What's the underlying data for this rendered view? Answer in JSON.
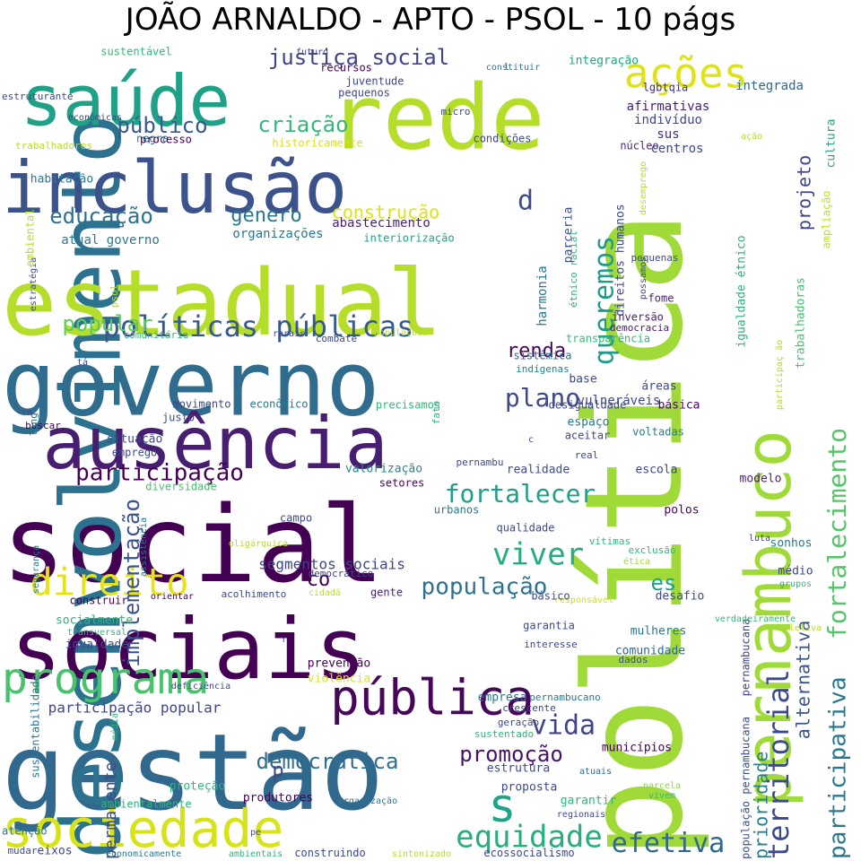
{
  "chart_data": {
    "type": "wordcloud",
    "title": "JOÃO ARNALDO - APTO - PSOL - 10 págs",
    "words": [
      {
        "text": "política",
        "rank": 1,
        "color": "#a0da39"
      },
      {
        "text": "social",
        "rank": 2,
        "color": "#440154"
      },
      {
        "text": "gestão",
        "rank": 3,
        "color": "#31688e"
      },
      {
        "text": "desenvolvimento",
        "rank": 4,
        "color": "#2c728e"
      },
      {
        "text": "estadual",
        "rank": 5,
        "color": "#b5de2b"
      },
      {
        "text": "governo",
        "rank": 6,
        "color": "#2f6c8e"
      },
      {
        "text": "sociais",
        "rank": 7,
        "color": "#440154"
      },
      {
        "text": "rede",
        "rank": 8,
        "color": "#b5de2b"
      },
      {
        "text": "pernambuco",
        "rank": 9,
        "color": "#a0da39"
      },
      {
        "text": "inclusão",
        "rank": 10,
        "color": "#3b528b"
      },
      {
        "text": "ausência",
        "rank": 11,
        "color": "#481f70"
      },
      {
        "text": "saúde",
        "rank": 12,
        "color": "#1fa187"
      },
      {
        "text": "sociedade",
        "rank": 13,
        "color": "#d8e219"
      },
      {
        "text": "pública",
        "rank": 14,
        "color": "#46075a"
      },
      {
        "text": "programa",
        "rank": 15,
        "color": "#4ac16d"
      },
      {
        "text": "s",
        "rank": 16,
        "color": "#20a386"
      },
      {
        "text": "direito",
        "rank": 17,
        "color": "#e5e419"
      },
      {
        "text": "ações",
        "rank": 18,
        "color": "#dde318"
      },
      {
        "text": "políticas públicas",
        "rank": 19,
        "color": "#38598c"
      },
      {
        "text": "territorial",
        "rank": 20,
        "color": "#3e4989"
      },
      {
        "text": "fortalecimento",
        "rank": 21,
        "color": "#54c568"
      },
      {
        "text": "participativa",
        "rank": 22,
        "color": "#2a788e"
      },
      {
        "text": "efetiva",
        "rank": 23,
        "color": "#31688e"
      },
      {
        "text": "equidade",
        "rank": 24,
        "color": "#27ad81"
      },
      {
        "text": "queremos",
        "rank": 25,
        "color": "#1e9b8a"
      },
      {
        "text": "viver",
        "rank": 26,
        "color": "#25ac82"
      },
      {
        "text": "implementação",
        "rank": 27,
        "color": "#3b528b"
      },
      {
        "text": "participação",
        "rank": 28,
        "color": "#440154"
      },
      {
        "text": "fortalecer",
        "rank": 29,
        "color": "#1f9e89"
      },
      {
        "text": "vida",
        "rank": 30,
        "color": "#414487"
      },
      {
        "text": "promoção",
        "rank": 31,
        "color": "#471365"
      },
      {
        "text": "democrática",
        "rank": 32,
        "color": "#2e6f8e"
      },
      {
        "text": "população",
        "rank": 33,
        "color": "#2c728e"
      },
      {
        "text": "popular",
        "rank": 34,
        "color": "#5ec962"
      },
      {
        "text": "educação",
        "rank": 35,
        "color": "#2c728e"
      },
      {
        "text": "plano",
        "rank": 36,
        "color": "#3e4a89"
      },
      {
        "text": "justiça social",
        "rank": 37,
        "color": "#414487"
      },
      {
        "text": "público",
        "rank": 38,
        "color": "#38598c"
      },
      {
        "text": "criação",
        "rank": 39,
        "color": "#35b779"
      },
      {
        "text": "gênero",
        "rank": 40,
        "color": "#2a788e"
      },
      {
        "text": "construção",
        "rank": 41,
        "color": "#dde318"
      },
      {
        "text": "projeto",
        "rank": 42,
        "color": "#404688"
      },
      {
        "text": "alternativa",
        "rank": 43,
        "color": "#3b528b"
      },
      {
        "text": "prioridade",
        "rank": 44,
        "color": "#26828e"
      },
      {
        "text": "renda",
        "rank": 45,
        "color": "#46075a"
      },
      {
        "text": "d",
        "rank": 46,
        "color": "#3e4a89"
      },
      {
        "text": "es",
        "rank": 47,
        "color": "#1fa188"
      },
      {
        "text": "co",
        "rank": 48,
        "color": "#440154"
      },
      {
        "text": "p",
        "rank": 49,
        "color": "#3e4989"
      },
      {
        "text": "permanente",
        "rank": 50,
        "color": "#3e4989"
      },
      {
        "text": "participação popular",
        "rank": 51,
        "color": "#3f4788"
      },
      {
        "text": "segmentos sociais",
        "rank": 52,
        "color": "#3f4788"
      },
      {
        "text": "vulneráveis",
        "rank": 53,
        "color": "#3e4989"
      },
      {
        "text": "atual governo",
        "rank": 54,
        "color": "#2a788e"
      },
      {
        "text": "organizações",
        "rank": 55,
        "color": "#2a788e"
      },
      {
        "text": "abastecimento",
        "rank": 56,
        "color": "#481f70"
      },
      {
        "text": "harmonia",
        "rank": 57,
        "color": "#2a788e"
      },
      {
        "text": "parceria",
        "rank": 58,
        "color": "#3b528b"
      },
      {
        "text": "direitos humanos",
        "rank": 59,
        "color": "#404688"
      },
      {
        "text": "afirmativas",
        "rank": 60,
        "color": "#481f70"
      },
      {
        "text": "indivíduo",
        "rank": 61,
        "color": "#3e4989"
      },
      {
        "text": "sus",
        "rank": 62,
        "color": "#472d7b"
      },
      {
        "text": "centros",
        "rank": 63,
        "color": "#3e4a89"
      },
      {
        "text": "núcleo",
        "rank": 64,
        "color": "#472d7b"
      },
      {
        "text": "integração",
        "rank": 65,
        "color": "#20a486"
      },
      {
        "text": "integrada",
        "rank": 66,
        "color": "#31688e"
      },
      {
        "text": "lgbtqia",
        "rank": 67,
        "color": "#472d7b"
      },
      {
        "text": "cultura",
        "rank": 68,
        "color": "#20a486"
      },
      {
        "text": "ampliação",
        "rank": 69,
        "color": "#c2df23"
      },
      {
        "text": "igualdade étnico",
        "rank": 70,
        "color": "#29af7f"
      },
      {
        "text": "trabalhadoras",
        "rank": 71,
        "color": "#46c06f"
      },
      {
        "text": "étnico racial",
        "rank": 72,
        "color": "#2fb47c"
      },
      {
        "text": "interiorização",
        "rank": 73,
        "color": "#1fa188"
      },
      {
        "text": "fome",
        "rank": 74,
        "color": "#482576"
      },
      {
        "text": "pequenas",
        "rank": 75,
        "color": "#3e4a89"
      },
      {
        "text": "democracia",
        "rank": 76,
        "color": "#481a6c"
      },
      {
        "text": "inversão",
        "rank": 77,
        "color": "#481a6c"
      },
      {
        "text": "transparência",
        "rank": 78,
        "color": "#35b779"
      },
      {
        "text": "sistêmica",
        "rank": 79,
        "color": "#31688e"
      },
      {
        "text": "indígenas",
        "rank": 80,
        "color": "#26828e"
      },
      {
        "text": "base",
        "rank": 81,
        "color": "#3e4a89"
      },
      {
        "text": "áreas",
        "rank": 82,
        "color": "#3e4989"
      },
      {
        "text": "básica",
        "rank": 83,
        "color": "#46075a"
      },
      {
        "text": "desigualdade",
        "rank": 84,
        "color": "#3f4788"
      },
      {
        "text": "espaço",
        "rank": 85,
        "color": "#2a788e"
      },
      {
        "text": "aceitar",
        "rank": 86,
        "color": "#3e4989"
      },
      {
        "text": "voltadas",
        "rank": 87,
        "color": "#2a788e"
      },
      {
        "text": "real",
        "rank": 88,
        "color": "#3f4788"
      },
      {
        "text": "pernambu",
        "rank": 89,
        "color": "#3e4989"
      },
      {
        "text": "valorização",
        "rank": 90,
        "color": "#25858e"
      },
      {
        "text": "realidade",
        "rank": 91,
        "color": "#3e4989"
      },
      {
        "text": "escola",
        "rank": 92,
        "color": "#3e4989"
      },
      {
        "text": "pernambucana",
        "rank": 93,
        "color": "#404688"
      },
      {
        "text": "modelo",
        "rank": 94,
        "color": "#481f70"
      },
      {
        "text": "setores",
        "rank": 95,
        "color": "#46075a"
      },
      {
        "text": "diversidade",
        "rank": 96,
        "color": "#4ac16d"
      },
      {
        "text": "polos",
        "rank": 97,
        "color": "#46075a"
      },
      {
        "text": "qualidade",
        "rank": 98,
        "color": "#3e4a89"
      },
      {
        "text": "luta",
        "rank": 99,
        "color": "#3f4788"
      },
      {
        "text": "sonhos",
        "rank": 100,
        "color": "#2a788e"
      },
      {
        "text": "urbanos",
        "rank": 101,
        "color": "#2a788e"
      },
      {
        "text": "vítimas",
        "rank": 102,
        "color": "#35b779"
      },
      {
        "text": "exclusão",
        "rank": 103,
        "color": "#35b779"
      },
      {
        "text": "ética",
        "rank": 104,
        "color": "#9fda3a"
      },
      {
        "text": "população pernambucana",
        "rank": 105,
        "color": "#3b528b"
      },
      {
        "text": "médio",
        "rank": 106,
        "color": "#3e4989"
      },
      {
        "text": "grupos",
        "rank": 107,
        "color": "#35b779"
      },
      {
        "text": "desafio",
        "rank": 108,
        "color": "#3e4989"
      },
      {
        "text": "responsável",
        "rank": 109,
        "color": "#c8e020"
      },
      {
        "text": "gente",
        "rank": 110,
        "color": "#481f70"
      },
      {
        "text": "básico",
        "rank": 111,
        "color": "#3e4989"
      },
      {
        "text": "democrático",
        "rank": 112,
        "color": "#3f4788"
      },
      {
        "text": "cidadã",
        "rank": 113,
        "color": "#b5de2b"
      },
      {
        "text": "acolhimento",
        "rank": 114,
        "color": "#3e4989"
      },
      {
        "text": "orientar",
        "rank": 115,
        "color": "#440154"
      },
      {
        "text": "construir",
        "rank": 116,
        "color": "#440154"
      },
      {
        "text": "oligárquica",
        "rank": 117,
        "color": "#b5de2b"
      },
      {
        "text": "campo",
        "rank": 118,
        "color": "#3e4989"
      },
      {
        "text": "garantia",
        "rank": 119,
        "color": "#3e4989"
      },
      {
        "text": "mulheres",
        "rank": 120,
        "color": "#2a788e"
      },
      {
        "text": "comunidade",
        "rank": 121,
        "color": "#31688e"
      },
      {
        "text": "verdadeiramente",
        "rank": 122,
        "color": "#35b779"
      },
      {
        "text": "coletiva",
        "rank": 123,
        "color": "#b5de2b"
      },
      {
        "text": "interesse",
        "rank": 124,
        "color": "#3e4989"
      },
      {
        "text": "dados",
        "rank": 125,
        "color": "#3e4989"
      },
      {
        "text": "prevenção",
        "rank": 126,
        "color": "#440154"
      },
      {
        "text": "violência",
        "rank": 127,
        "color": "#dde318"
      },
      {
        "text": "empresa",
        "rank": 128,
        "color": "#2a788e"
      },
      {
        "text": "pernambucano",
        "rank": 129,
        "color": "#2a788e"
      },
      {
        "text": "crescente",
        "rank": 130,
        "color": "#3e4989"
      },
      {
        "text": "geração",
        "rank": 131,
        "color": "#3e4989"
      },
      {
        "text": "sustentado",
        "rank": 132,
        "color": "#2fb47c"
      },
      {
        "text": "municípios",
        "rank": 133,
        "color": "#440154"
      },
      {
        "text": "estrutura",
        "rank": 134,
        "color": "#3e4989"
      },
      {
        "text": "atuais",
        "rank": 135,
        "color": "#31688e"
      },
      {
        "text": "proposta",
        "rank": 136,
        "color": "#3e4989"
      },
      {
        "text": "parcela",
        "rank": 137,
        "color": "#8fd744"
      },
      {
        "text": "vivem",
        "rank": 138,
        "color": "#35b779"
      },
      {
        "text": "garantir",
        "rank": 139,
        "color": "#2fb47c"
      },
      {
        "text": "regionais",
        "rank": 140,
        "color": "#3e4989"
      },
      {
        "text": "proteção",
        "rank": 141,
        "color": "#2fb47c"
      },
      {
        "text": "ambientalmente",
        "rank": 142,
        "color": "#2fb47c"
      },
      {
        "text": "produtores",
        "rank": 143,
        "color": "#440154"
      },
      {
        "text": "organização",
        "rank": 144,
        "color": "#2a788e"
      },
      {
        "text": "atenção",
        "rank": 145,
        "color": "#2a788e"
      },
      {
        "text": "mudar",
        "rank": 146,
        "color": "#3e4989"
      },
      {
        "text": "eixos",
        "rank": 147,
        "color": "#3e4989"
      },
      {
        "text": "economicamente",
        "rank": 148,
        "color": "#2a788e"
      },
      {
        "text": "ambientais",
        "rank": 149,
        "color": "#2fb47c"
      },
      {
        "text": "construindo",
        "rank": 150,
        "color": "#3e4989"
      },
      {
        "text": "sintonizado",
        "rank": 151,
        "color": "#b5de2b"
      },
      {
        "text": "ecossocialismo",
        "rank": 152,
        "color": "#3e4989"
      },
      {
        "text": "pe",
        "rank": 153,
        "color": "#3e4989"
      },
      {
        "text": "socialmente",
        "rank": 154,
        "color": "#2fb47c"
      },
      {
        "text": "transversal",
        "rank": 155,
        "color": "#2fb47c"
      },
      {
        "text": "igualdade",
        "rank": 156,
        "color": "#3e4989"
      },
      {
        "text": "r",
        "rank": 157,
        "color": "#3e4989"
      },
      {
        "text": "deficiência",
        "rank": 158,
        "color": "#3e4989"
      },
      {
        "text": "sustentabilidade",
        "rank": 159,
        "color": "#2a788e"
      },
      {
        "text": "média",
        "rank": 160,
        "color": "#2fb47c"
      },
      {
        "text": "segurança",
        "rank": 161,
        "color": "#2a788e"
      },
      {
        "text": "assistência",
        "rank": 162,
        "color": "#2a788e"
      },
      {
        "text": "emprego",
        "rank": 163,
        "color": "#3e4989"
      },
      {
        "text": "situação",
        "rank": 164,
        "color": "#3e4989"
      },
      {
        "text": "justo",
        "rank": 165,
        "color": "#3e4989"
      },
      {
        "text": "movimento",
        "rank": 166,
        "color": "#3e4989"
      },
      {
        "text": "econômico",
        "rank": 167,
        "color": "#2a788e"
      },
      {
        "text": "precisamos",
        "rank": 168,
        "color": "#35b779"
      },
      {
        "text": "fato",
        "rank": 169,
        "color": "#2fb47c"
      },
      {
        "text": "buscar",
        "rank": 170,
        "color": "#440154"
      },
      {
        "text": "ra",
        "rank": 171,
        "color": "#3e4989"
      },
      {
        "text": "longo",
        "rank": 172,
        "color": "#2a788e"
      },
      {
        "text": "tá",
        "rank": 173,
        "color": "#3e4989"
      },
      {
        "text": "comunitária",
        "rank": 174,
        "color": "#35b779"
      },
      {
        "text": "rurais",
        "rank": 175,
        "color": "#3e4989"
      },
      {
        "text": "combate",
        "rank": 176,
        "color": "#3e4989"
      },
      {
        "text": "populações",
        "rank": 177,
        "color": "#b5de2b"
      },
      {
        "text": "psol",
        "rank": 178,
        "color": "#b5de2b"
      },
      {
        "text": "estratégia",
        "rank": 179,
        "color": "#3e4989"
      },
      {
        "text": "ambiental",
        "rank": 180,
        "color": "#b5de2b"
      },
      {
        "text": "habitação",
        "rank": 181,
        "color": "#2a788e"
      },
      {
        "text": "trabalhadores",
        "rank": 182,
        "color": "#b5de2b"
      },
      {
        "text": "econômicas",
        "rank": 183,
        "color": "#3e4989"
      },
      {
        "text": "estruturante",
        "rank": 184,
        "color": "#3e4989"
      },
      {
        "text": "sustentável",
        "rank": 185,
        "color": "#35b779"
      },
      {
        "text": "futuro",
        "rank": 186,
        "color": "#3e4989"
      },
      {
        "text": "recursos",
        "rank": 187,
        "color": "#440154"
      },
      {
        "text": "juventude",
        "rank": 188,
        "color": "#3e4989"
      },
      {
        "text": "pequenos",
        "rank": 189,
        "color": "#3e4989"
      },
      {
        "text": "l",
        "rank": 190,
        "color": "#3e4989"
      },
      {
        "text": "constituir",
        "rank": 191,
        "color": "#2a788e"
      },
      {
        "text": "micro",
        "rank": 192,
        "color": "#3e4989"
      },
      {
        "text": "negra",
        "rank": 193,
        "color": "#2a788e"
      },
      {
        "text": "processo",
        "rank": 194,
        "color": "#440154"
      },
      {
        "text": "historicamente",
        "rank": 195,
        "color": "#d8e219"
      },
      {
        "text": "condições",
        "rank": 196,
        "color": "#3e4989"
      },
      {
        "text": "desemprego",
        "rank": 197,
        "color": "#b5de2b"
      },
      {
        "text": "possamos",
        "rank": 198,
        "color": "#3e4989"
      },
      {
        "text": "ação",
        "rank": 199,
        "color": "#b5de2b"
      },
      {
        "text": "participaç ão",
        "rank": 200,
        "color": "#b5de2b"
      },
      {
        "text": "c",
        "rank": 201,
        "color": "#3e4989"
      }
    ]
  }
}
